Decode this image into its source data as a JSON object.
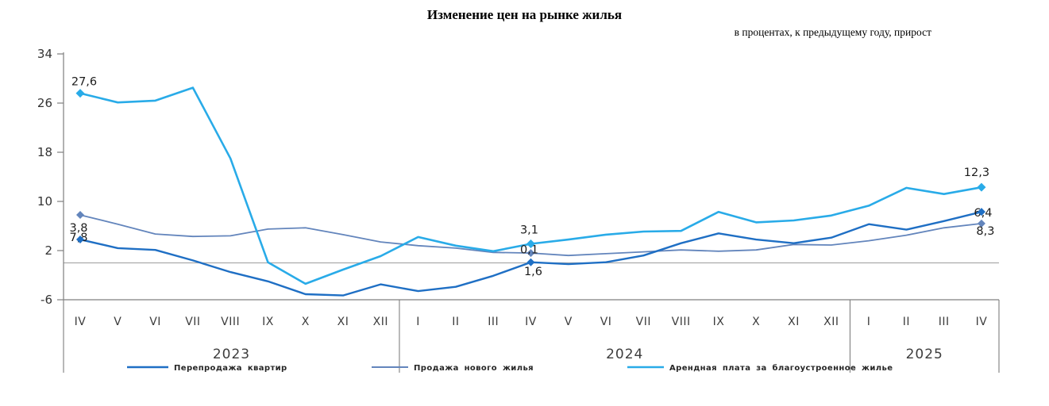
{
  "title": "Изменение цен на рынке жилья",
  "subtitle": "в процентах, к предыдущему году, прирост",
  "chart_data": {
    "type": "line",
    "x_axis": {
      "groups": [
        {
          "year": "2023",
          "months": [
            "IV",
            "V",
            "VI",
            "VII",
            "VIII",
            "IX",
            "X",
            "XI",
            "XII"
          ]
        },
        {
          "year": "2024",
          "months": [
            "I",
            "II",
            "III",
            "IV",
            "V",
            "VI",
            "VII",
            "VIII",
            "IX",
            "X",
            "XI",
            "XII"
          ]
        },
        {
          "year": "2025",
          "months": [
            "I",
            "II",
            "III",
            "IV"
          ]
        }
      ]
    },
    "y_axis": {
      "ticks": [
        34,
        26,
        18,
        10,
        2,
        -6
      ],
      "min": -6,
      "max": 34,
      "grid": false,
      "zero_line": true
    },
    "series": [
      {
        "name": "Перепродажа квартир",
        "color": "#1F6FC4",
        "values": [
          3.8,
          2.4,
          2.1,
          0.4,
          -1.5,
          -3.0,
          -5.1,
          -5.3,
          -3.5,
          -4.6,
          -3.9,
          -2.1,
          0.1,
          -0.2,
          0.1,
          1.2,
          3.2,
          4.8,
          3.8,
          3.2,
          4.1,
          6.3,
          5.4,
          6.8,
          8.3
        ],
        "labeled_points": [
          {
            "index": 0,
            "label": "3,8"
          },
          {
            "index": 12,
            "label": "0,1"
          },
          {
            "index": 24,
            "label": "8,3"
          }
        ]
      },
      {
        "name": "Продажа нового жилья",
        "color": "#6385BC",
        "values": [
          7.8,
          6.3,
          4.7,
          4.3,
          4.4,
          5.5,
          5.7,
          4.6,
          3.4,
          2.8,
          2.4,
          1.7,
          1.6,
          1.2,
          1.5,
          1.8,
          2.1,
          1.9,
          2.1,
          3.0,
          2.9,
          3.6,
          4.5,
          5.7,
          6.4
        ],
        "labeled_points": [
          {
            "index": 0,
            "label": "7,8"
          },
          {
            "index": 12,
            "label": "1,6"
          },
          {
            "index": 24,
            "label": "6,4"
          }
        ]
      },
      {
        "name": "Арендная плата за благоустроенное жилье",
        "color": "#29ABE8",
        "values": [
          27.6,
          26.1,
          26.4,
          28.5,
          17.0,
          0.1,
          -3.4,
          -1.1,
          1.1,
          4.2,
          2.8,
          1.9,
          3.1,
          3.8,
          4.6,
          5.1,
          5.2,
          8.3,
          6.6,
          6.9,
          7.7,
          9.3,
          12.2,
          11.2,
          12.3
        ],
        "labeled_points": [
          {
            "index": 0,
            "label": "27,6"
          },
          {
            "index": 12,
            "label": "3,1"
          },
          {
            "index": 24,
            "label": "12,3"
          }
        ]
      }
    ]
  }
}
